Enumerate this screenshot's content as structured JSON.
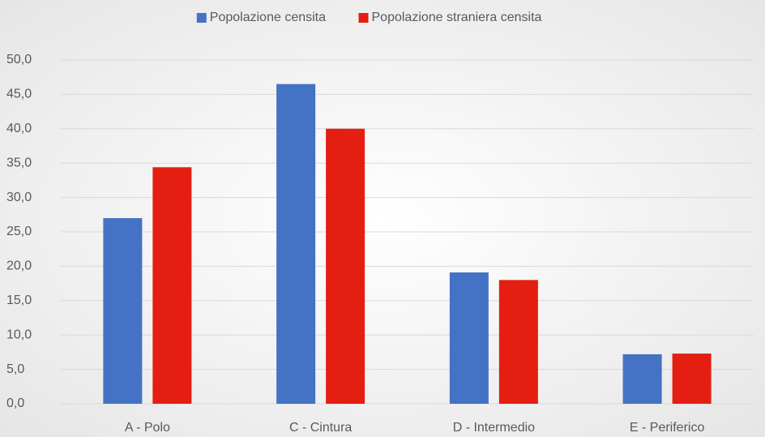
{
  "chart_data": {
    "type": "bar",
    "categories": [
      "A - Polo",
      "C - Cintura",
      "D - Intermedio",
      "E - Periferico"
    ],
    "series": [
      {
        "name": "Popolazione censita",
        "color": "#4472c4",
        "values": [
          27.0,
          46.5,
          19.1,
          7.2
        ]
      },
      {
        "name": "Popolazione straniera censita",
        "color": "#e41e10",
        "values": [
          34.4,
          40.0,
          18.0,
          7.3
        ]
      }
    ],
    "ylim": [
      0,
      50
    ],
    "yticks": [
      {
        "value": 0,
        "label": "0,0"
      },
      {
        "value": 5,
        "label": "5,0"
      },
      {
        "value": 10,
        "label": "10,0"
      },
      {
        "value": 15,
        "label": "15,0"
      },
      {
        "value": 20,
        "label": "20,0"
      },
      {
        "value": 25,
        "label": "25,0"
      },
      {
        "value": 30,
        "label": "30,0"
      },
      {
        "value": 35,
        "label": "35,0"
      },
      {
        "value": 40,
        "label": "40,0"
      },
      {
        "value": 45,
        "label": "45,0"
      },
      {
        "value": 50,
        "label": "50,0"
      }
    ],
    "grid": true,
    "legend": "top"
  }
}
